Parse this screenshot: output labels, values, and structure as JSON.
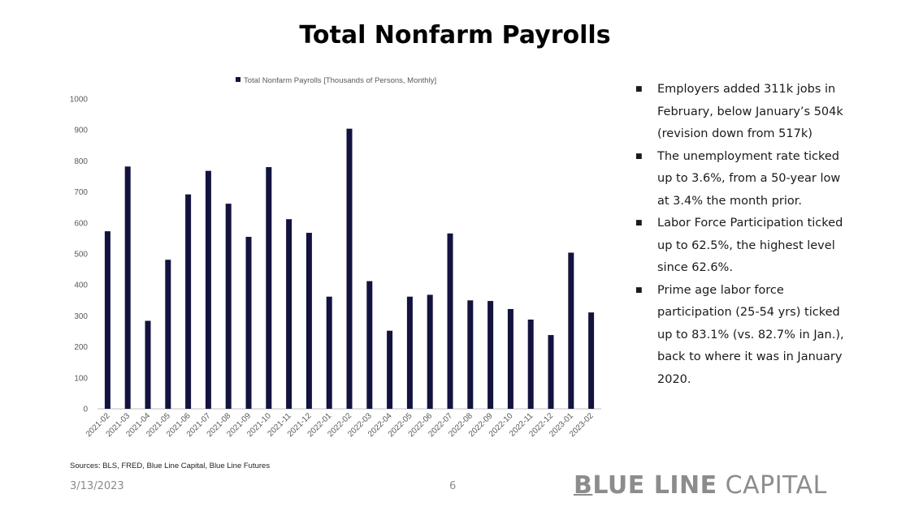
{
  "page": {
    "title": "Total Nonfarm Payrolls",
    "sources": "Sources: BLS, FRED, Blue Line Capital, Blue Line Futures",
    "date": "3/13/2023",
    "page_number": "6",
    "brand": {
      "first_letter": "B",
      "bold_rest": "LUE LINE",
      "light": " CAPITAL"
    }
  },
  "bullets": [
    "Employers added 311k jobs in February, below January’s 504k (revision down from 517k)",
    "The unemployment rate ticked up to 3.6%, from a 50-year low at 3.4% the month prior.",
    "Labor Force Participation ticked up to 62.5%, the highest level since 62.6%.",
    "Prime age labor force participation (25-54 yrs) ticked up to 83.1% (vs. 82.7% in Jan.), back to where it was in January 2020."
  ],
  "colors": {
    "bar": "#13133f",
    "axis_text": "#595959",
    "axis_line": "#bfbfbf"
  },
  "chart_data": {
    "type": "bar",
    "categories": [
      "2021-02",
      "2021-03",
      "2021-04",
      "2021-05",
      "2021-06",
      "2021-07",
      "2021-08",
      "2021-09",
      "2021-10",
      "2021-11",
      "2021-12",
      "2022-01",
      "2022-02",
      "2022-03",
      "2022-04",
      "2022-05",
      "2022-06",
      "2022-07",
      "2022-08",
      "2022-09",
      "2022-10",
      "2022-11",
      "2022-12",
      "2023-01",
      "2023-02"
    ],
    "series": [
      {
        "name": "Total Nonfarm Payrolls [Thousands of Persons, Monthly]",
        "values": [
          573,
          782,
          284,
          481,
          692,
          768,
          662,
          555,
          780,
          612,
          568,
          362,
          904,
          412,
          252,
          362,
          368,
          566,
          350,
          348,
          322,
          288,
          238,
          504,
          311
        ]
      }
    ],
    "ylim": [
      0,
      1000
    ],
    "yticks": [
      0,
      100,
      200,
      300,
      400,
      500,
      600,
      700,
      800,
      900,
      1000
    ],
    "legend": "top-center",
    "grid": false,
    "xlabel": "",
    "ylabel": ""
  }
}
